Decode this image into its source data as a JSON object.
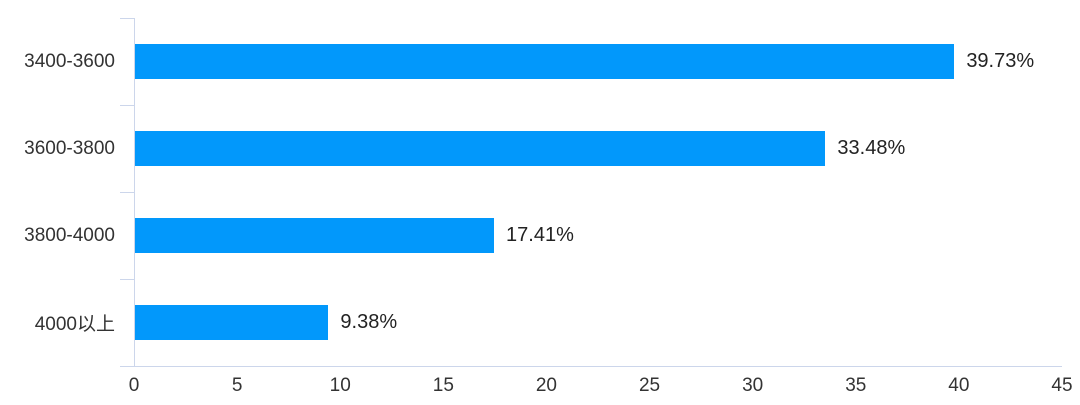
{
  "chart_data": {
    "type": "bar",
    "orientation": "horizontal",
    "title": "",
    "xlabel": "",
    "ylabel": "",
    "categories": [
      "3400-3600",
      "3600-3800",
      "3800-4000",
      "4000以上"
    ],
    "values": [
      39.73,
      33.48,
      17.41,
      9.38
    ],
    "value_labels": [
      "39.73%",
      "33.48%",
      "17.41%",
      "9.38%"
    ],
    "xlim": [
      0,
      45
    ],
    "x_ticks": [
      0,
      5,
      10,
      15,
      20,
      25,
      30,
      35,
      40,
      45
    ],
    "grid": false,
    "legend": "none",
    "bar_color": "#0298fb",
    "axis_color": "#ccd6eb",
    "label_color": "#333333",
    "value_color": "#222222"
  }
}
